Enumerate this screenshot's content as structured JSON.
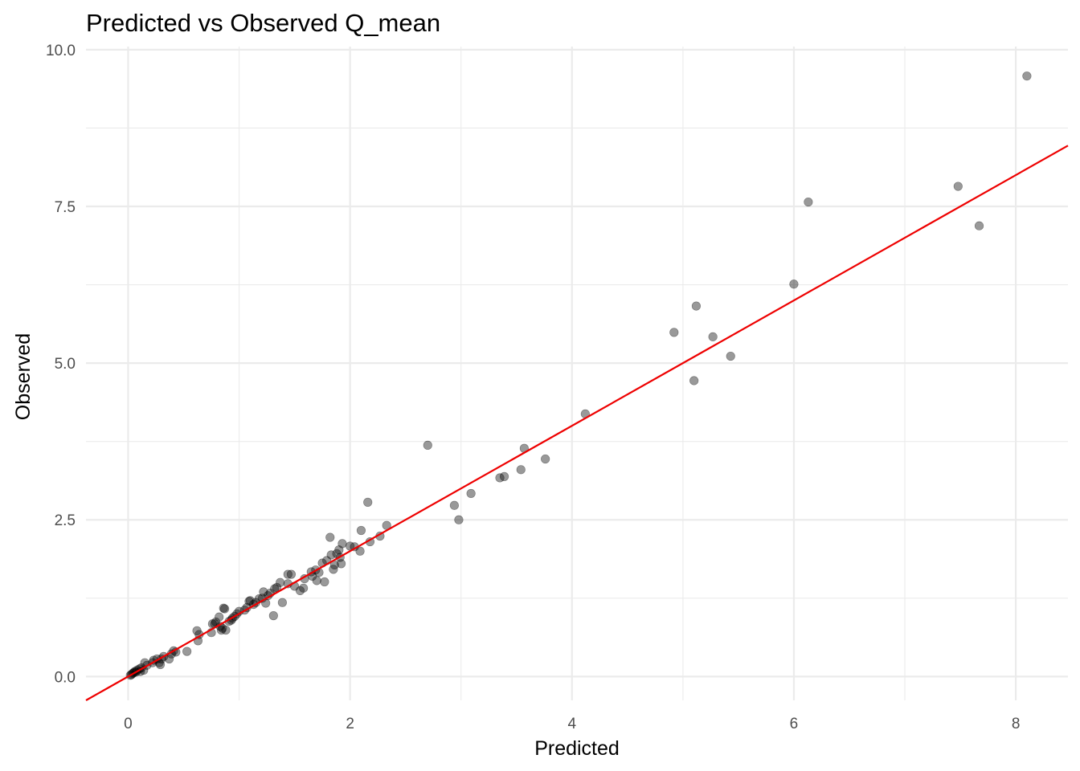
{
  "chart_data": {
    "type": "scatter",
    "title": "Predicted vs Observed Q_mean",
    "xlabel": "Predicted",
    "ylabel": "Observed",
    "xlim": [
      -0.38,
      8.47
    ],
    "ylim": [
      -0.38,
      10.05
    ],
    "x_ticks": [
      0,
      2,
      4,
      6,
      8
    ],
    "x_tick_labels": [
      "0",
      "2",
      "4",
      "6",
      "8"
    ],
    "x_minor_ticks": [
      1,
      3,
      5,
      7
    ],
    "y_ticks": [
      0.0,
      2.5,
      5.0,
      7.5,
      10.0
    ],
    "y_tick_labels": [
      "0.0",
      "2.5",
      "5.0",
      "7.5",
      "10.0"
    ],
    "y_minor_ticks": [
      1.25,
      3.75,
      6.25,
      8.75
    ],
    "grid": true,
    "point_color": "#000000",
    "point_opacity": 0.4,
    "line_color": "#ee0000",
    "grid_color": "#ebebeb",
    "reference_line": {
      "type": "identity",
      "slope": 1,
      "intercept": 0
    },
    "series": [
      {
        "points": [
          [
            8.1,
            9.58
          ],
          [
            7.48,
            7.82
          ],
          [
            7.67,
            7.19
          ],
          [
            6.13,
            7.57
          ],
          [
            6.0,
            6.26
          ],
          [
            5.12,
            5.91
          ],
          [
            4.92,
            5.49
          ],
          [
            5.27,
            5.42
          ],
          [
            5.43,
            5.11
          ],
          [
            5.1,
            4.72
          ],
          [
            4.12,
            4.19
          ],
          [
            2.7,
            3.69
          ],
          [
            3.57,
            3.64
          ],
          [
            3.76,
            3.47
          ],
          [
            3.54,
            3.3
          ],
          [
            3.39,
            3.19
          ],
          [
            3.35,
            3.17
          ],
          [
            3.09,
            2.92
          ],
          [
            2.94,
            2.73
          ],
          [
            2.98,
            2.5
          ],
          [
            2.16,
            2.78
          ],
          [
            2.33,
            2.41
          ],
          [
            2.1,
            2.33
          ],
          [
            2.27,
            2.24
          ],
          [
            2.18,
            2.15
          ],
          [
            1.82,
            2.22
          ],
          [
            1.93,
            2.12
          ],
          [
            2.0,
            2.08
          ],
          [
            2.04,
            2.07
          ],
          [
            1.9,
            2.02
          ],
          [
            2.09,
            2.0
          ],
          [
            1.88,
            1.96
          ],
          [
            1.83,
            1.94
          ],
          [
            1.91,
            1.9
          ],
          [
            1.79,
            1.85
          ],
          [
            1.75,
            1.81
          ],
          [
            1.86,
            1.78
          ],
          [
            1.92,
            1.8
          ],
          [
            1.85,
            1.71
          ],
          [
            1.69,
            1.7
          ],
          [
            1.65,
            1.67
          ],
          [
            1.72,
            1.66
          ],
          [
            1.47,
            1.63
          ],
          [
            1.44,
            1.63
          ],
          [
            1.66,
            1.6
          ],
          [
            1.59,
            1.56
          ],
          [
            1.7,
            1.53
          ],
          [
            1.77,
            1.51
          ],
          [
            1.37,
            1.5
          ],
          [
            1.44,
            1.48
          ],
          [
            1.5,
            1.44
          ],
          [
            1.34,
            1.42
          ],
          [
            1.32,
            1.4
          ],
          [
            1.55,
            1.37
          ],
          [
            1.58,
            1.41
          ],
          [
            1.22,
            1.35
          ],
          [
            1.28,
            1.33
          ],
          [
            1.26,
            1.29
          ],
          [
            1.18,
            1.24
          ],
          [
            1.21,
            1.25
          ],
          [
            1.1,
            1.21
          ],
          [
            1.09,
            1.2
          ],
          [
            1.15,
            1.18
          ],
          [
            1.39,
            1.18
          ],
          [
            1.24,
            1.17
          ],
          [
            1.13,
            1.15
          ],
          [
            1.07,
            1.1
          ],
          [
            1.05,
            1.06
          ],
          [
            1.0,
            1.04
          ],
          [
            0.98,
            1.0
          ],
          [
            0.96,
            0.96
          ],
          [
            0.94,
            0.93
          ],
          [
            0.93,
            0.9
          ],
          [
            0.91,
            0.88
          ],
          [
            1.31,
            0.97
          ],
          [
            0.87,
            1.08
          ],
          [
            0.86,
            1.09
          ],
          [
            0.79,
            0.87
          ],
          [
            0.82,
            0.95
          ],
          [
            0.78,
            0.84
          ],
          [
            0.76,
            0.84
          ],
          [
            0.83,
            0.8
          ],
          [
            0.85,
            0.77
          ],
          [
            0.88,
            0.74
          ],
          [
            0.84,
            0.74
          ],
          [
            0.75,
            0.7
          ],
          [
            0.62,
            0.73
          ],
          [
            0.64,
            0.67
          ],
          [
            0.63,
            0.57
          ],
          [
            0.53,
            0.4
          ],
          [
            0.41,
            0.41
          ],
          [
            0.43,
            0.39
          ],
          [
            0.39,
            0.36
          ],
          [
            0.37,
            0.28
          ],
          [
            0.32,
            0.32
          ],
          [
            0.3,
            0.28
          ],
          [
            0.26,
            0.28
          ],
          [
            0.28,
            0.22
          ],
          [
            0.29,
            0.19
          ],
          [
            0.23,
            0.26
          ],
          [
            0.22,
            0.22
          ],
          [
            0.15,
            0.22
          ],
          [
            0.17,
            0.18
          ],
          [
            0.12,
            0.14
          ],
          [
            0.1,
            0.12
          ],
          [
            0.14,
            0.1
          ],
          [
            0.11,
            0.08
          ],
          [
            0.08,
            0.1
          ],
          [
            0.07,
            0.07
          ],
          [
            0.06,
            0.08
          ],
          [
            0.05,
            0.06
          ],
          [
            0.04,
            0.05
          ],
          [
            0.03,
            0.03
          ],
          [
            0.02,
            0.02
          ]
        ]
      }
    ]
  }
}
